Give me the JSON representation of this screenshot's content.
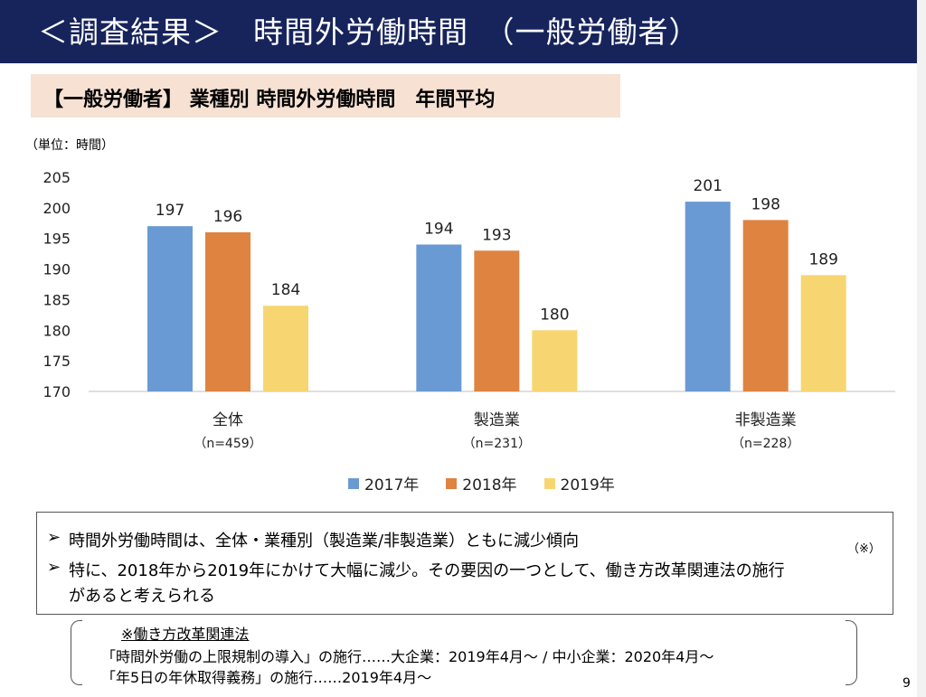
{
  "header": {
    "title": "＜調査結果＞　時間外労働時間　（一般労働者）"
  },
  "subtitle": "【一般労働者】 業種別 時間外労働時間　年間平均",
  "unit_label": "（単位：時間）",
  "colors": {
    "2017": "#6a9ad3",
    "2018": "#df8340",
    "2019": "#f7d671",
    "title_bar": "#17245c",
    "subtitle_bg": "#f6e1d3"
  },
  "chart_data": {
    "type": "bar",
    "categories": [
      "全体",
      "製造業",
      "非製造業"
    ],
    "category_notes": [
      "（n=459）",
      "（n=231）",
      "（n=228）"
    ],
    "series": [
      {
        "name": "2017年",
        "values": [
          197,
          194,
          201
        ]
      },
      {
        "name": "2018年",
        "values": [
          196,
          193,
          198
        ]
      },
      {
        "name": "2019年",
        "values": [
          184,
          180,
          189
        ]
      }
    ],
    "data_labels": [
      [
        "197",
        "194",
        "201"
      ],
      [
        "196",
        "193",
        "198"
      ],
      [
        "184",
        "180",
        "189"
      ]
    ],
    "ylim": [
      170,
      205
    ],
    "yticks": [
      "205",
      "200",
      "195",
      "190",
      "185",
      "180",
      "175",
      "170"
    ],
    "grid": false,
    "legend_position": "bottom"
  },
  "legend": [
    "2017年",
    "2018年",
    "2019年"
  ],
  "summary": {
    "bullet_mark": "➢",
    "line1": "時間外労働時間は、全体・業種別（製造業/非製造業）ともに減少傾向",
    "line2": "特に、2018年から2019年にかけて大幅に減少。その要因の一つとして、働き方改革関連法の施行",
    "line3": "があると考えられる",
    "superscript": "（※）"
  },
  "note": {
    "heading": "※働き方改革関連法",
    "line1": "「時間外労働の上限規制の導入」の施行……大企業：2019年4月～ / 中小企業：2020年4月～",
    "line2": "「年5日の年休取得義務」の施行……2019年4月～"
  },
  "page_number": "9"
}
